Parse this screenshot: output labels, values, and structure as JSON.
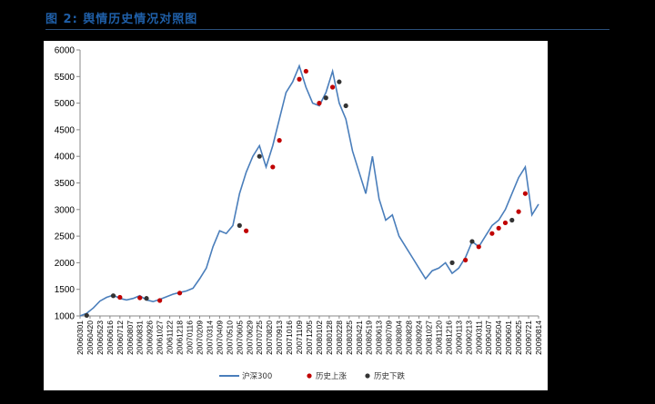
{
  "figure": {
    "title": "图 2: 舆情历史情况对照图"
  },
  "chart_data": {
    "type": "line",
    "ylim": [
      1000,
      6000
    ],
    "yticks": [
      1000,
      1500,
      2000,
      2500,
      3000,
      3500,
      4000,
      4500,
      5000,
      5500,
      6000
    ],
    "grid": false,
    "legend_position": "bottom",
    "x_tick_labels": [
      "20060301",
      "20060420",
      "20060523",
      "20060616",
      "20060712",
      "20060807",
      "20060831",
      "20060926",
      "20061027",
      "20061122",
      "20061218",
      "20070116",
      "20070209",
      "20070314",
      "20070409",
      "20070510",
      "20070605",
      "20070629",
      "20070725",
      "20070820",
      "20070913",
      "20071016",
      "20071109",
      "20071205",
      "20080102",
      "20080128",
      "20080228",
      "20080325",
      "20080421",
      "20080519",
      "20080613",
      "20080709",
      "20080804",
      "20080828",
      "20080924",
      "20081027",
      "20081120",
      "20081216",
      "20090113",
      "20090213",
      "20090311",
      "20090407",
      "20090504",
      "20090601",
      "20090625",
      "20090721",
      "20090814"
    ],
    "series": [
      {
        "name": "沪深300",
        "color": "#4a7ebb",
        "type": "line",
        "values": [
          1000,
          1050,
          1150,
          1280,
          1350,
          1390,
          1330,
          1300,
          1330,
          1380,
          1300,
          1270,
          1310,
          1360,
          1410,
          1440,
          1470,
          1520,
          1700,
          1900,
          2300,
          2600,
          2550,
          2700,
          3300,
          3700,
          4000,
          4200,
          3800,
          4200,
          4700,
          5200,
          5400,
          5700,
          5300,
          5000,
          4950,
          5200,
          5600,
          5000,
          4700,
          4100,
          3700,
          3300,
          4000,
          3200,
          2800,
          2900,
          2500,
          2300,
          2100,
          1900,
          1700,
          1850,
          1900,
          2000,
          1800,
          1900,
          2100,
          2400,
          2300,
          2500,
          2700,
          2800,
          3000,
          3300,
          3600,
          3800,
          2900,
          3100
        ]
      },
      {
        "name": "历史上涨",
        "color": "#c00000",
        "type": "scatter",
        "points": [
          [
            6,
            1350
          ],
          [
            9,
            1340
          ],
          [
            12,
            1290
          ],
          [
            15,
            1430
          ],
          [
            25,
            2600
          ],
          [
            29,
            3800
          ],
          [
            30,
            4300
          ],
          [
            33,
            5450
          ],
          [
            34,
            5600
          ],
          [
            36,
            5000
          ],
          [
            38,
            5300
          ],
          [
            58,
            2050
          ],
          [
            60,
            2300
          ],
          [
            62,
            2550
          ],
          [
            63,
            2650
          ],
          [
            64,
            2750
          ],
          [
            66,
            2960
          ],
          [
            67,
            3300
          ]
        ]
      },
      {
        "name": "历史下跌",
        "color": "#333333",
        "type": "scatter",
        "points": [
          [
            1,
            1010
          ],
          [
            5,
            1380
          ],
          [
            10,
            1330
          ],
          [
            24,
            2700
          ],
          [
            27,
            4000
          ],
          [
            37,
            5100
          ],
          [
            39,
            5400
          ],
          [
            40,
            4950
          ],
          [
            56,
            2000
          ],
          [
            59,
            2400
          ],
          [
            65,
            2800
          ]
        ]
      }
    ]
  }
}
